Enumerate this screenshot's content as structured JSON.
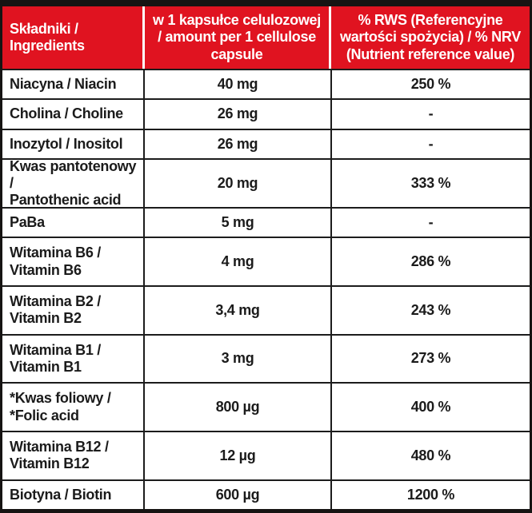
{
  "colors": {
    "header_bg": "#e01320",
    "header_text": "#ffffff",
    "border": "#1c1c1c",
    "body_text": "#1b1b1b"
  },
  "table": {
    "header": {
      "col_ingredients": "Składniki /\nIngredients",
      "col_amount": "w 1 kapsułce celulozowej\n/ amount per 1 cellulose\ncapsule",
      "col_nrv": "% RWS (Referencyjne\nwartości spożycia) / % NRV\n(Nutrient reference value)"
    },
    "rows": [
      {
        "name": "Niacyna / Niacin",
        "amount": "40 mg",
        "nrv": "250 %"
      },
      {
        "name": "Cholina / Choline",
        "amount": "26 mg",
        "nrv": "-"
      },
      {
        "name": "Inozytol / Inositol",
        "amount": "26 mg",
        "nrv": "-"
      },
      {
        "name": "Kwas pantotenowy /\nPantothenic acid",
        "amount": "20 mg",
        "nrv": "333 %"
      },
      {
        "name": "PaBa",
        "amount": "5 mg",
        "nrv": "-"
      },
      {
        "name": "Witamina B6 /\nVitamin B6",
        "amount": "4 mg",
        "nrv": "286 %"
      },
      {
        "name": "Witamina B2 /\nVitamin B2",
        "amount": "3,4 mg",
        "nrv": "243 %"
      },
      {
        "name": "Witamina B1 /\nVitamin B1",
        "amount": "3 mg",
        "nrv": "273 %"
      },
      {
        "name": "*Kwas foliowy /\n*Folic acid",
        "amount": "800 µg",
        "nrv": "400 %"
      },
      {
        "name": "Witamina B12 /\nVitamin B12",
        "amount": "12 µg",
        "nrv": "480 %"
      },
      {
        "name": "Biotyna / Biotin",
        "amount": "600 µg",
        "nrv": "1200 %"
      }
    ]
  }
}
